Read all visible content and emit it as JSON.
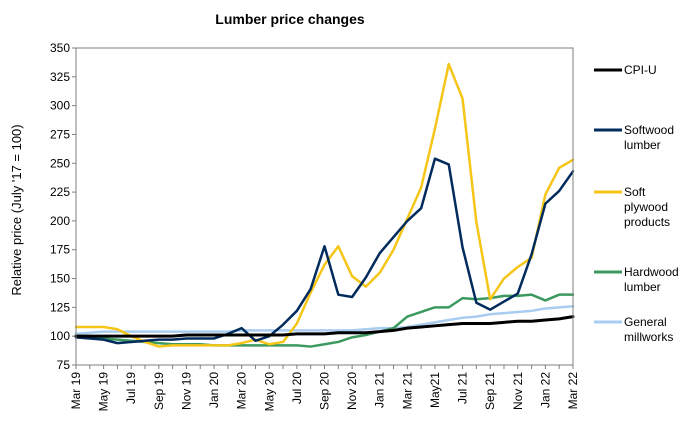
{
  "chart_data": {
    "type": "line",
    "title": "Lumber price changes",
    "xlabel": "",
    "ylabel": "Relative price (July '17 = 100)",
    "ylim": [
      75,
      350
    ],
    "yticks": [
      75,
      100,
      125,
      150,
      175,
      200,
      225,
      250,
      275,
      300,
      325,
      350
    ],
    "grid": false,
    "legend_placement": "right",
    "x": [
      "Mar 19",
      "Apr 19",
      "May 19",
      "Jun 19",
      "Jul 19",
      "Aug 19",
      "Sep 19",
      "Oct 19",
      "Nov 19",
      "Dec 19",
      "Jan 20",
      "Feb 20",
      "Mar 20",
      "Apr 20",
      "May 20",
      "Jun 20",
      "Jul 20",
      "Aug 20",
      "Sep 20",
      "Oct 20",
      "Nov 20",
      "Dec 20",
      "Jan 21",
      "Feb 21",
      "Mar 21",
      "Apr 21",
      "May21",
      "Jun 21",
      "Jul 21",
      "Aug 21",
      "Sep 21",
      "Oct 21",
      "Nov 21",
      "Dec 21",
      "Jan 22",
      "Feb 22",
      "Mar 22"
    ],
    "x_tick_labels": [
      "Mar 19",
      "May 19",
      "Jul 19",
      "Sep 19",
      "Nov 19",
      "Jan 20",
      "Mar 20",
      "May 20",
      "Jul 20",
      "Sep 20",
      "Nov 20",
      "Jan 21",
      "Mar 21",
      "May21",
      "Jul 21",
      "Sep 21",
      "Nov 21",
      "Jan 22",
      "Mar 22"
    ],
    "series": [
      {
        "name": "CPI-U",
        "color": "#000000",
        "values": [
          100,
          100,
          100,
          100,
          100,
          100,
          100,
          100,
          101,
          101,
          101,
          101,
          101,
          101,
          101,
          101,
          102,
          102,
          102,
          103,
          103,
          103,
          104,
          105,
          107,
          108,
          109,
          110,
          111,
          111,
          111,
          112,
          113,
          113,
          114,
          115,
          117
        ]
      },
      {
        "name": "Softwood lumber",
        "color": "#002b5c",
        "values": [
          99,
          98,
          97,
          94,
          95,
          96,
          97,
          97,
          98,
          98,
          98,
          102,
          107,
          96,
          100,
          110,
          122,
          141,
          178,
          136,
          134,
          151,
          172,
          186,
          200,
          211,
          254,
          249,
          177,
          129,
          123,
          130,
          137,
          171,
          215,
          226,
          243
        ]
      },
      {
        "name": "Soft plywood products",
        "color": "#f5c518",
        "values": [
          108,
          108,
          108,
          106,
          100,
          95,
          91,
          92,
          92,
          92,
          92,
          92,
          94,
          97,
          93,
          95,
          111,
          138,
          162,
          178,
          152,
          143,
          155,
          175,
          202,
          229,
          280,
          336,
          306,
          199,
          132,
          150,
          160,
          168,
          223,
          246,
          253
        ]
      },
      {
        "name": "Hardwood lumber",
        "color": "#3c9a5f",
        "values": [
          100,
          100,
          98,
          97,
          96,
          95,
          94,
          93,
          93,
          93,
          92,
          92,
          92,
          92,
          92,
          92,
          92,
          91,
          93,
          95,
          99,
          101,
          104,
          107,
          117,
          121,
          125,
          125,
          133,
          132,
          133,
          135,
          135,
          136,
          131,
          136,
          136
        ]
      },
      {
        "name": "General millworks",
        "color": "#a9cdf0",
        "values": [
          102,
          103,
          104,
          104,
          104,
          104,
          104,
          104,
          104,
          104,
          104,
          104,
          105,
          105,
          105,
          105,
          105,
          105,
          105,
          105,
          105,
          106,
          107,
          107,
          108,
          110,
          112,
          114,
          116,
          117,
          119,
          120,
          121,
          122,
          124,
          125,
          126
        ]
      }
    ],
    "legend": [
      {
        "lines": [
          "CPI-U"
        ]
      },
      {
        "lines": [
          "Softwood",
          "lumber"
        ]
      },
      {
        "lines": [
          "Soft",
          "plywood",
          "products"
        ]
      },
      {
        "lines": [
          "Hardwood",
          "lumber"
        ]
      },
      {
        "lines": [
          "General",
          "millworks"
        ]
      }
    ]
  }
}
